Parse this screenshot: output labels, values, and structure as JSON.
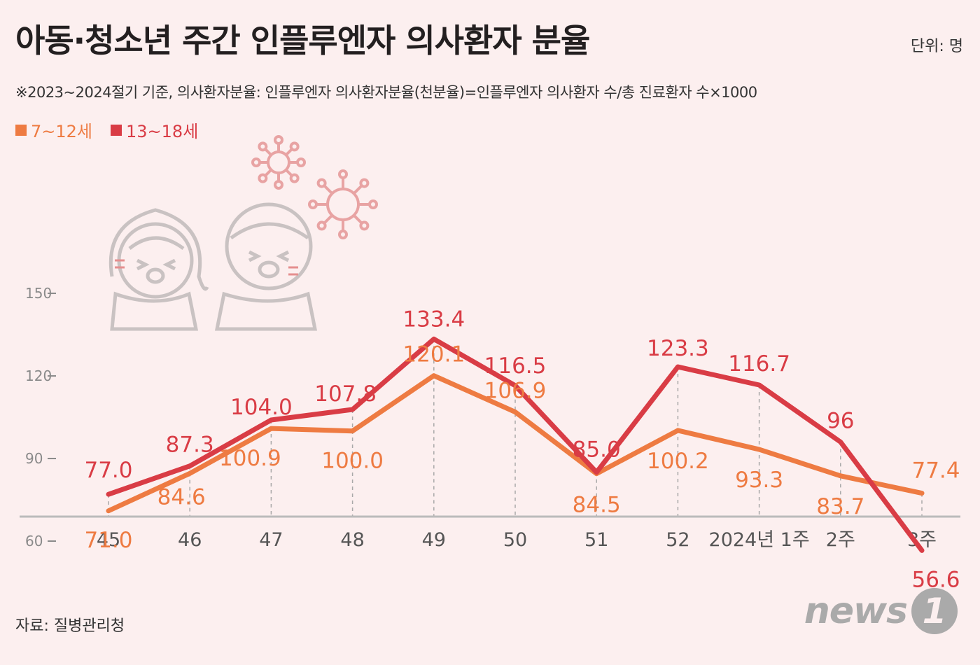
{
  "header": {
    "title": "아동·청소년 주간 인플루엔자 의사환자 분율",
    "unit": "단위: 명",
    "note": "※2023~2024절기 기준, 의사환자분율: 인플루엔자 의사환자분율(천분율)=인플루엔자 의사환자 수/총 진료환자 수×1000"
  },
  "footer": {
    "source": "자료: 질병관리청",
    "logo_text": "news",
    "logo_badge": "1"
  },
  "colors": {
    "series_7_12": "#ee7b42",
    "series_13_18": "#d93c45",
    "background": "#fcefef"
  },
  "chart_data": {
    "type": "line",
    "categories": [
      "45",
      "46",
      "47",
      "48",
      "49",
      "50",
      "51",
      "52",
      "2024년 1주",
      "2주",
      "3주"
    ],
    "y_ticks": [
      60,
      90,
      120,
      150
    ],
    "ylim": [
      30,
      155
    ],
    "grid": "vertical dashed at each category",
    "legend_placement": "top-left",
    "series": [
      {
        "name": "7~12세",
        "values": [
          71.0,
          84.6,
          100.9,
          100.0,
          120.1,
          106.9,
          84.5,
          100.2,
          93.3,
          83.7,
          77.4
        ],
        "labels": [
          "71.0",
          "84.6",
          "100.9",
          "100.0",
          "120.1",
          "106.9",
          "84.5",
          "100.2",
          "93.3",
          "83.7",
          "77.4"
        ]
      },
      {
        "name": "13~18세",
        "values": [
          77.0,
          87.3,
          104.0,
          107.8,
          133.4,
          116.5,
          85.0,
          123.3,
          116.7,
          96,
          56.6
        ],
        "labels": [
          "77.0",
          "87.3",
          "104.0",
          "107.8",
          "133.4",
          "116.5",
          "85.0",
          "123.3",
          "116.7",
          "96",
          "56.6"
        ]
      }
    ]
  }
}
